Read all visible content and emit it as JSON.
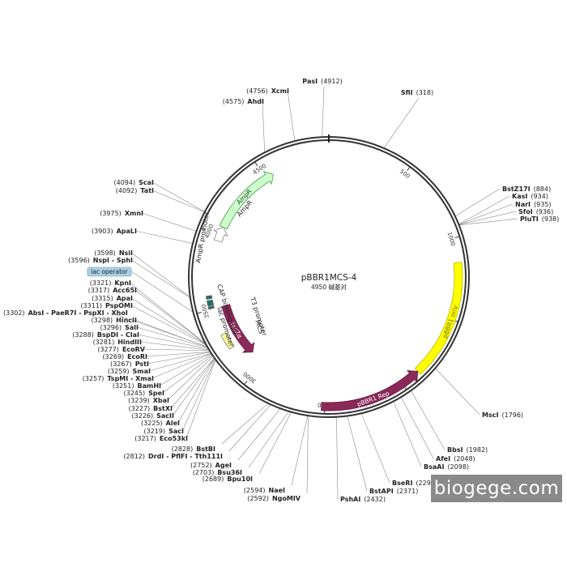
{
  "plasmid": {
    "name": "pBBR1MCS-4",
    "size_label": "4950 碱基对",
    "length": 4950
  },
  "ticks": [
    {
      "pos": 500,
      "label": "500"
    },
    {
      "pos": 1000,
      "label": "1000"
    },
    {
      "pos": 1500,
      "label": "1500"
    },
    {
      "pos": 2000,
      "label": "2000"
    },
    {
      "pos": 2500,
      "label": "2500"
    },
    {
      "pos": 3000,
      "label": "3000"
    },
    {
      "pos": 3500,
      "label": "3500"
    },
    {
      "pos": 4000,
      "label": "4000"
    },
    {
      "pos": 4500,
      "label": "4500"
    }
  ],
  "features": [
    {
      "name": "pBBR1 oriV",
      "start": 1150,
      "end": 1880,
      "color": "#ffff00",
      "stroke": "#c8c800",
      "text_color": "#6b6b00",
      "direction": "none",
      "track": "outer"
    },
    {
      "name": "pBBR1 Rep",
      "start": 1880,
      "end": 2520,
      "color": "#8b2a5a",
      "stroke": "#6e1f47",
      "text_color": "#ffffff",
      "direction": "ccw",
      "track": "outer"
    },
    {
      "name": "lacZα",
      "start": 3500,
      "end": 3100,
      "color": "#8b2a5a",
      "stroke": "#6e1f47",
      "text_color": "#ffffff",
      "direction": "ccw",
      "track": "inner3"
    },
    {
      "name": "AmpR",
      "start": 4060,
      "end": 4560,
      "color": "#ccffcc",
      "stroke": "#66aa66",
      "text_color": "#333333",
      "direction": "cw",
      "track": "inner1"
    },
    {
      "name": "AmpR promoter",
      "start": 3960,
      "end": 4060,
      "color": "#ffffff",
      "stroke": "#999999",
      "text_color": "#333333",
      "direction": "cw",
      "track": "inner1"
    }
  ],
  "small_features": [
    {
      "name": "CAP binding site",
      "start": 3570,
      "end": 3590,
      "color": "#2b6e6e"
    },
    {
      "name": "lac promoter",
      "start": 3525,
      "end": 3560,
      "color": "#2b6e6e"
    },
    {
      "name": "lac operator",
      "start": 3505,
      "end": 3520,
      "color": "#2b6e6e"
    },
    {
      "name": "T3 promoter",
      "start": 3238,
      "end": 3258,
      "color": "#ffffff"
    },
    {
      "name": "MCS",
      "start": 3217,
      "end": 3321,
      "color": "#ffff99"
    }
  ],
  "inner_labels": [
    {
      "text": "CAP binding site"
    },
    {
      "text": "lac promoter"
    },
    {
      "text": "T3 promoter"
    },
    {
      "text": "MCS"
    },
    {
      "text": "AmpR promoter"
    },
    {
      "text": "AmpR"
    }
  ],
  "sites_right": [
    {
      "name": "PasI",
      "pos": "4912"
    },
    {
      "name": "SfiI",
      "pos": "318"
    },
    {
      "name": "BstZ17I",
      "pos": "884"
    },
    {
      "name": "KasI",
      "pos": "934"
    },
    {
      "name": "NarI",
      "pos": "935"
    },
    {
      "name": "SfoI",
      "pos": "936"
    },
    {
      "name": "PluTI",
      "pos": "938"
    },
    {
      "name": "MscI",
      "pos": "1796"
    },
    {
      "name": "BbsI",
      "pos": "1982"
    },
    {
      "name": "AfeI",
      "pos": "2048"
    },
    {
      "name": "BsaAI",
      "pos": "2098"
    },
    {
      "name": "BseRI",
      "pos": "2291"
    },
    {
      "name": "BstAPI",
      "pos": "2371"
    },
    {
      "name": "PshAI",
      "pos": "2432"
    }
  ],
  "sites_left": [
    {
      "name": "XcmI",
      "pos": "4756"
    },
    {
      "name": "AhdI",
      "pos": "4575"
    },
    {
      "name": "ScaI",
      "pos": "4094"
    },
    {
      "name": "TatI",
      "pos": "4092"
    },
    {
      "name": "XmnI",
      "pos": "3975"
    },
    {
      "name": "ApaLI",
      "pos": "3903"
    },
    {
      "name": "NsiI",
      "pos": "3598"
    },
    {
      "name": "NspI - SphI",
      "pos": "3596"
    },
    {
      "name": "lac operator",
      "pos": "",
      "boxed": true
    },
    {
      "name": "KpnI",
      "pos": "3321"
    },
    {
      "name": "Acc65I",
      "pos": "3317"
    },
    {
      "name": "ApaI",
      "pos": "3315"
    },
    {
      "name": "PspOMI",
      "pos": "3311"
    },
    {
      "name": "AbsI - PaeR7I - PspXI - XhoI",
      "pos": "3302"
    },
    {
      "name": "HincII",
      "pos": "3298"
    },
    {
      "name": "SalI",
      "pos": "3296"
    },
    {
      "name": "BspDI - ClaI",
      "pos": "3288"
    },
    {
      "name": "HindIII",
      "pos": "3281"
    },
    {
      "name": "EcoRV",
      "pos": "3277"
    },
    {
      "name": "EcoRI",
      "pos": "3269"
    },
    {
      "name": "PstI",
      "pos": "3267"
    },
    {
      "name": "SmaI",
      "pos": "3259"
    },
    {
      "name": "TspMI - XmaI",
      "pos": "3257"
    },
    {
      "name": "BamHI",
      "pos": "3251"
    },
    {
      "name": "SpeI",
      "pos": "3245"
    },
    {
      "name": "XbaI",
      "pos": "3239"
    },
    {
      "name": "BstXI",
      "pos": "3227"
    },
    {
      "name": "SacII",
      "pos": "3226"
    },
    {
      "name": "AleI",
      "pos": "3225"
    },
    {
      "name": "SacI",
      "pos": "3219"
    },
    {
      "name": "Eco53kI",
      "pos": "3217"
    },
    {
      "name": "BstBI",
      "pos": "2828"
    },
    {
      "name": "DrdI - PflFI - Tth111I",
      "pos": "2812"
    },
    {
      "name": "AgeI",
      "pos": "2752"
    },
    {
      "name": "Bsu36I",
      "pos": "2703"
    },
    {
      "name": "Bpu10I",
      "pos": "2689"
    },
    {
      "name": "NaeI",
      "pos": "2594"
    },
    {
      "name": "NgoMIV",
      "pos": "2592"
    }
  ],
  "watermark": "biogege.com"
}
